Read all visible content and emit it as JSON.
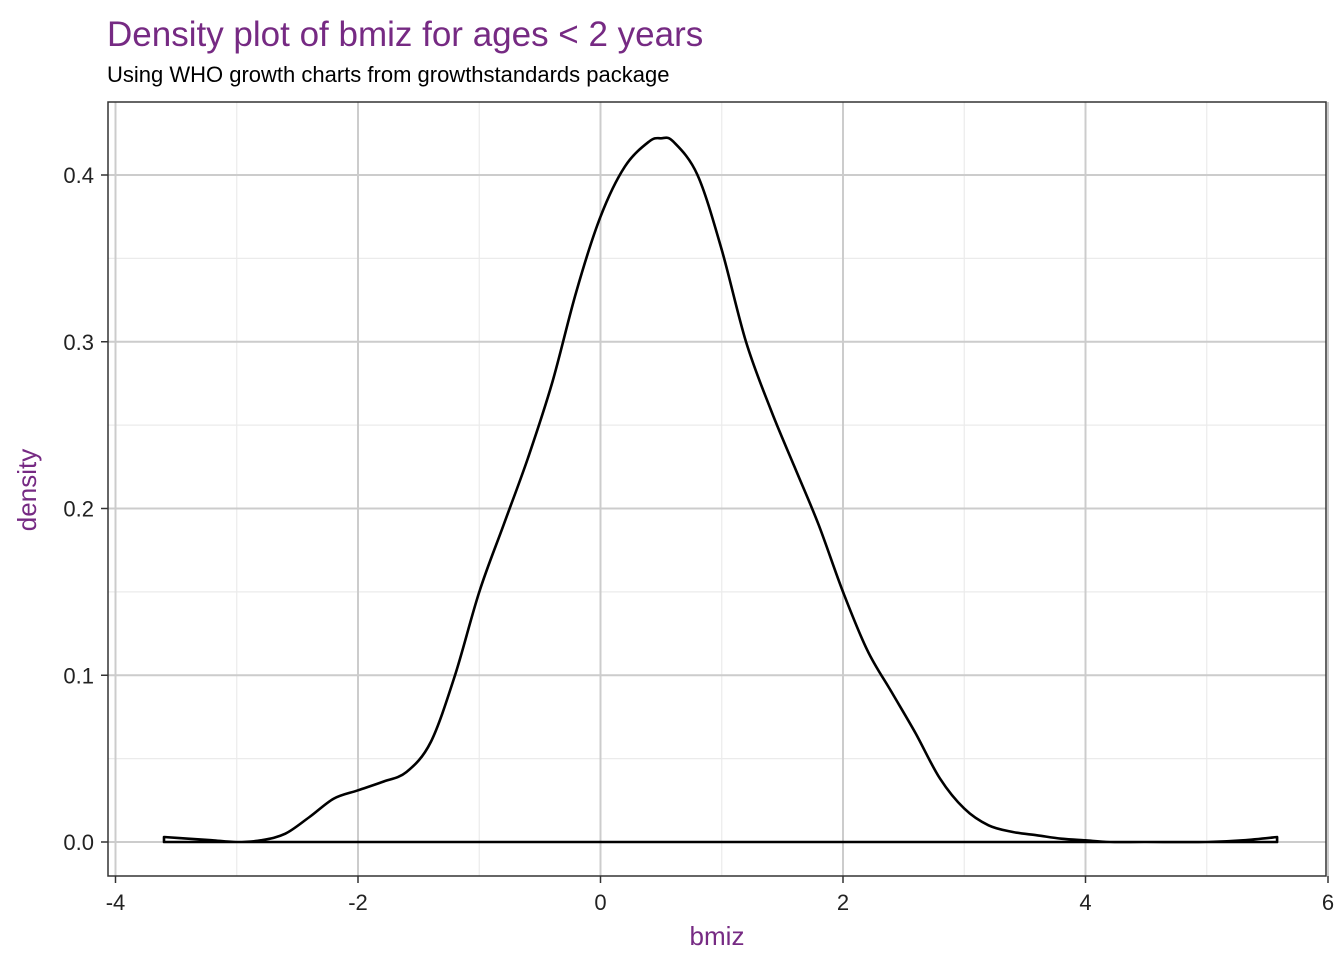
{
  "colors": {
    "accent": "#762a83",
    "line": "#000000",
    "grid_major": "#cccccc",
    "grid_minor": "#ebebeb"
  },
  "chart_data": {
    "type": "line",
    "title": "Density plot of bmiz for ages < 2 years",
    "subtitle": "Using WHO growth charts from growthstandards package",
    "xlabel": "bmiz",
    "ylabel": "density",
    "xlim": [
      -4,
      6
    ],
    "ylim": [
      0,
      0.42
    ],
    "x_ticks": [
      -4,
      -2,
      0,
      2,
      4,
      6
    ],
    "x_tick_labels": [
      "-4",
      "-2",
      "0",
      "2",
      "4",
      "6"
    ],
    "y_ticks": [
      0,
      0.1,
      0.2,
      0.3,
      0.4
    ],
    "y_tick_labels": [
      "0.0",
      "0.1",
      "0.2",
      "0.3",
      "0.4"
    ],
    "grid": true,
    "legend": "none",
    "series": [
      {
        "x": [
          -3.6,
          -3.4,
          -3.2,
          -3.0,
          -2.8,
          -2.6,
          -2.4,
          -2.2,
          -2.0,
          -1.8,
          -1.6,
          -1.4,
          -1.2,
          -1.0,
          -0.8,
          -0.6,
          -0.4,
          -0.2,
          0.0,
          0.2,
          0.4,
          0.5,
          0.6,
          0.8,
          1.0,
          1.2,
          1.4,
          1.6,
          1.8,
          2.0,
          2.2,
          2.4,
          2.6,
          2.8,
          3.0,
          3.2,
          3.4,
          3.6,
          3.8,
          4.0,
          4.2,
          4.5,
          5.0,
          5.3,
          5.58
        ],
        "y": [
          0.003,
          0.002,
          0.001,
          0.0,
          0.001,
          0.005,
          0.015,
          0.026,
          0.031,
          0.036,
          0.042,
          0.06,
          0.1,
          0.15,
          0.19,
          0.23,
          0.275,
          0.33,
          0.375,
          0.405,
          0.42,
          0.422,
          0.42,
          0.4,
          0.355,
          0.3,
          0.26,
          0.225,
          0.19,
          0.15,
          0.115,
          0.09,
          0.065,
          0.038,
          0.02,
          0.01,
          0.006,
          0.004,
          0.002,
          0.001,
          0.0,
          0.0,
          0.0,
          0.001,
          0.003
        ]
      }
    ]
  }
}
